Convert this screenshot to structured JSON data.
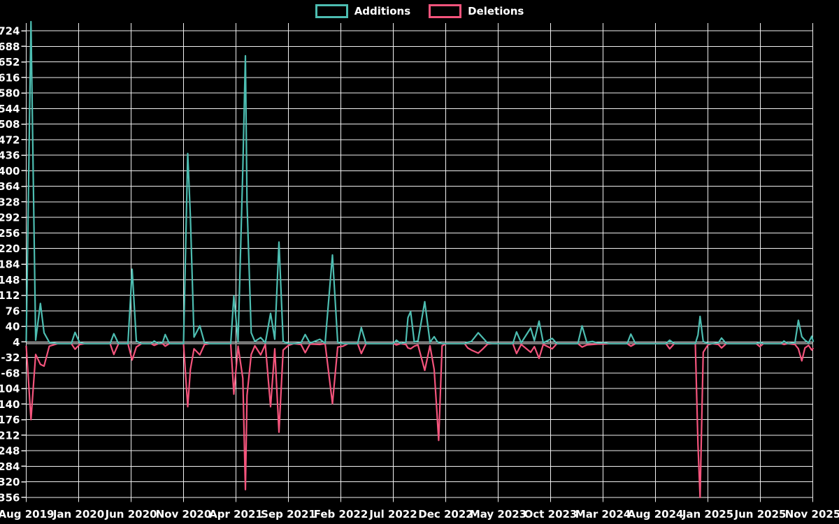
{
  "legend": {
    "additions_label": "Additions",
    "deletions_label": "Deletions"
  },
  "colors": {
    "additions": "#4dbdb1",
    "deletions": "#f4547c",
    "background": "#000000",
    "grid": "#f0f0f0",
    "zero_line": "#929292",
    "text": "#ffffff"
  },
  "chart_data": {
    "type": "line",
    "title": "",
    "xlabel": "",
    "ylabel": "",
    "legend_position": "top-center",
    "grid": true,
    "x_start_month": "2019-08",
    "x_end_month": "2025-11",
    "x_unit": "t = months since Aug 2019 (fractional = weekly detail)",
    "y_ticks": [
      724,
      688,
      652,
      616,
      580,
      544,
      508,
      472,
      436,
      400,
      364,
      328,
      292,
      256,
      220,
      184,
      148,
      112,
      76,
      40,
      4,
      -32,
      -68,
      -104,
      -140,
      -176,
      -212,
      -248,
      -284,
      -320,
      -356
    ],
    "y_tick_step": 36,
    "ylim": [
      -356,
      724
    ],
    "x_tick_labels": [
      "Aug 2019",
      "Jan 2020",
      "Jun 2020",
      "Nov 2020",
      "Apr 2021",
      "Sep 2021",
      "Feb 2022",
      "Jul 2022",
      "Dec 2022",
      "May 2023",
      "Oct 2023",
      "Mar 2024",
      "Aug 2024",
      "Jan 2025",
      "Jun 2025",
      "Nov 2025"
    ],
    "x_tick_interval_months": 5,
    "series": [
      {
        "name": "Additions",
        "color_key": "additions",
        "sign": "positive"
      },
      {
        "name": "Deletions",
        "color_key": "deletions",
        "sign": "negative"
      }
    ],
    "columns": [
      "t_months_since_aug2019",
      "additions",
      "deletions"
    ],
    "points": [
      [
        0,
        5,
        -5
      ],
      [
        0.45,
        745,
        -176
      ],
      [
        0.9,
        8,
        -25
      ],
      [
        1.35,
        93,
        -48
      ],
      [
        1.7,
        25,
        -52
      ],
      [
        2.2,
        3,
        -6
      ],
      [
        3,
        0,
        0
      ],
      [
        4.3,
        0,
        0
      ],
      [
        4.65,
        26,
        -13
      ],
      [
        5.1,
        2,
        -2
      ],
      [
        5.6,
        0,
        0
      ],
      [
        8,
        0,
        0
      ],
      [
        8.35,
        23,
        -25
      ],
      [
        8.8,
        0,
        0
      ],
      [
        9.7,
        0,
        0
      ],
      [
        10.1,
        172,
        -38
      ],
      [
        10.5,
        6,
        -8
      ],
      [
        11,
        0,
        0
      ],
      [
        11.9,
        0,
        0
      ],
      [
        12.2,
        6,
        -4
      ],
      [
        12.6,
        0,
        0
      ],
      [
        13,
        2,
        0
      ],
      [
        13.25,
        21,
        -6
      ],
      [
        13.65,
        0,
        0
      ],
      [
        15,
        0,
        0
      ],
      [
        15.4,
        440,
        -146
      ],
      [
        15.65,
        294,
        -60
      ],
      [
        16,
        15,
        -12
      ],
      [
        16.55,
        41,
        -26
      ],
      [
        17,
        2,
        -2
      ],
      [
        17.5,
        0,
        0
      ],
      [
        19.5,
        0,
        0
      ],
      [
        19.8,
        111,
        -117
      ],
      [
        20.2,
        4,
        -6
      ],
      [
        20.65,
        404,
        -80
      ],
      [
        20.9,
        666,
        -338
      ],
      [
        21.05,
        326,
        -120
      ],
      [
        21.45,
        25,
        -25
      ],
      [
        21.8,
        5,
        -5
      ],
      [
        22.35,
        14,
        -26
      ],
      [
        22.8,
        2,
        -2
      ],
      [
        23.3,
        70,
        -146
      ],
      [
        23.7,
        10,
        -12
      ],
      [
        24.1,
        235,
        -205
      ],
      [
        24.5,
        5,
        -15
      ],
      [
        25,
        0,
        -4
      ],
      [
        25.5,
        0,
        0
      ],
      [
        26.2,
        2,
        -2
      ],
      [
        26.6,
        21,
        -21
      ],
      [
        27.05,
        1,
        -1
      ],
      [
        28,
        10,
        -2
      ],
      [
        28.5,
        1,
        0
      ],
      [
        29.2,
        205,
        -139
      ],
      [
        29.7,
        3,
        -8
      ],
      [
        30.2,
        0,
        -6
      ],
      [
        30.7,
        0,
        0
      ],
      [
        31.6,
        0,
        0
      ],
      [
        31.95,
        37,
        -23
      ],
      [
        32.4,
        0,
        0
      ],
      [
        35,
        0,
        0
      ],
      [
        35.3,
        8,
        -3
      ],
      [
        35.7,
        0,
        0
      ],
      [
        36.2,
        3,
        -2
      ],
      [
        36.4,
        60,
        -10
      ],
      [
        36.65,
        74,
        -12
      ],
      [
        37.0,
        4,
        -6
      ],
      [
        37.35,
        6,
        -3
      ],
      [
        38.0,
        97,
        -62
      ],
      [
        38.5,
        3,
        -5
      ],
      [
        38.9,
        16,
        -60
      ],
      [
        39.15,
        6,
        -156
      ],
      [
        39.33,
        2,
        -224
      ],
      [
        39.65,
        0,
        -5
      ],
      [
        40.1,
        0,
        0
      ],
      [
        41.8,
        0,
        0
      ],
      [
        42.1,
        3,
        -10
      ],
      [
        42.45,
        5,
        -15
      ],
      [
        43.1,
        25,
        -22
      ],
      [
        43.55,
        13,
        -12
      ],
      [
        44,
        1,
        -1
      ],
      [
        44.5,
        0,
        0
      ],
      [
        46.4,
        0,
        0
      ],
      [
        46.75,
        27,
        -23
      ],
      [
        47.2,
        2,
        -2
      ],
      [
        48.1,
        36,
        -20
      ],
      [
        48.45,
        7,
        -7
      ],
      [
        48.9,
        52,
        -34
      ],
      [
        49.3,
        2,
        -2
      ],
      [
        50.15,
        12,
        -12
      ],
      [
        50.6,
        0,
        0
      ],
      [
        52.6,
        0,
        0
      ],
      [
        53,
        41,
        -8
      ],
      [
        53.45,
        3,
        -3
      ],
      [
        54,
        5,
        -2
      ],
      [
        54.5,
        1,
        -1
      ],
      [
        55.1,
        2,
        -1
      ],
      [
        55.6,
        0,
        0
      ],
      [
        57.3,
        0,
        0
      ],
      [
        57.65,
        22,
        -6
      ],
      [
        58.1,
        0,
        0
      ],
      [
        61,
        0,
        0
      ],
      [
        61.35,
        8,
        -12
      ],
      [
        61.8,
        0,
        0
      ],
      [
        63.8,
        0,
        0
      ],
      [
        64.05,
        20,
        -234
      ],
      [
        64.25,
        63,
        -356
      ],
      [
        64.55,
        5,
        -20
      ],
      [
        65,
        0,
        -3
      ],
      [
        65.4,
        0,
        0
      ],
      [
        66,
        2,
        -2
      ],
      [
        66.3,
        13,
        -10
      ],
      [
        66.75,
        0,
        0
      ],
      [
        69.6,
        0,
        0
      ],
      [
        69.95,
        3,
        -7
      ],
      [
        70.3,
        0,
        0
      ],
      [
        72,
        0,
        0
      ],
      [
        72.25,
        6,
        -2
      ],
      [
        72.6,
        0,
        0
      ],
      [
        73.3,
        2,
        -2
      ],
      [
        73.63,
        54,
        -12
      ],
      [
        73.95,
        16,
        -40
      ],
      [
        74.25,
        8,
        -10
      ],
      [
        74.6,
        2,
        -4
      ],
      [
        74.9,
        17,
        -15
      ],
      [
        75.05,
        4,
        -10
      ]
    ]
  }
}
